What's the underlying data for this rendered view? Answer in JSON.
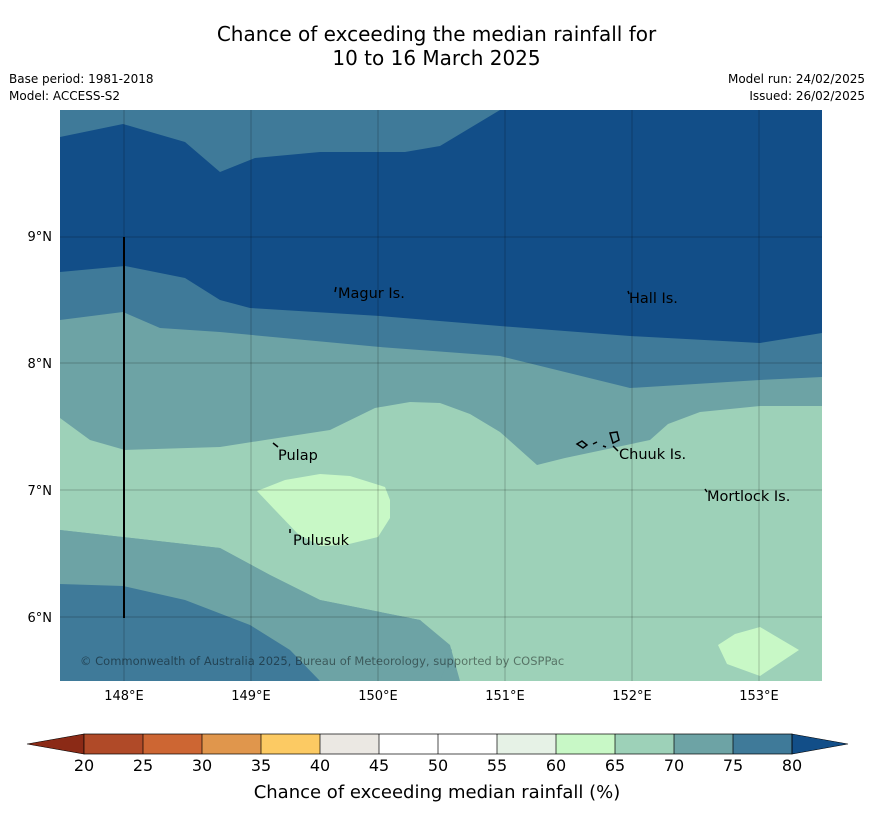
{
  "title": {
    "line1": "Chance of exceeding the median rainfall for",
    "line2": "10 to 16 March 2025"
  },
  "meta_left": {
    "base_period": "Base period: 1981-2018",
    "model": "Model: ACCESS-S2"
  },
  "meta_right": {
    "model_run": "Model run: 24/02/2025",
    "issued": "Issued: 26/02/2025"
  },
  "map": {
    "lat_labels": [
      "9°N",
      "8°N",
      "7°N",
      "6°N"
    ],
    "lon_labels": [
      "148°E",
      "149°E",
      "150°E",
      "151°E",
      "152°E",
      "153°E"
    ],
    "places": [
      {
        "name": "Magur Is."
      },
      {
        "name": "Hall Is."
      },
      {
        "name": "Pulap"
      },
      {
        "name": "Chuuk Is."
      },
      {
        "name": "Mortlock Is."
      },
      {
        "name": "Pulusuk"
      }
    ],
    "copyright": "© Commonwealth of Australia 2025, Bureau of Meteorology, supported by COSPPac"
  },
  "colorbar": {
    "title": "Chance of exceeding median rainfall (%)",
    "ticks": [
      "20",
      "25",
      "30",
      "35",
      "40",
      "45",
      "50",
      "55",
      "60",
      "65",
      "70",
      "75",
      "80"
    ],
    "colors": {
      "below": "#8b2a16",
      "c20_25": "#b04a28",
      "c25_30": "#cd6633",
      "c30_35": "#e0964c",
      "c35_40": "#fcca63",
      "c40_45": "#ebe8e3",
      "c45_50": "#ffffff",
      "c50_55": "#ffffff",
      "c55_60": "#e6f2e6",
      "c60_65": "#c8f8c6",
      "c65_70": "#9dd1b8",
      "c70_75": "#6da3a5",
      "c75_80": "#3f7a99",
      "above": "#124e88"
    }
  }
}
